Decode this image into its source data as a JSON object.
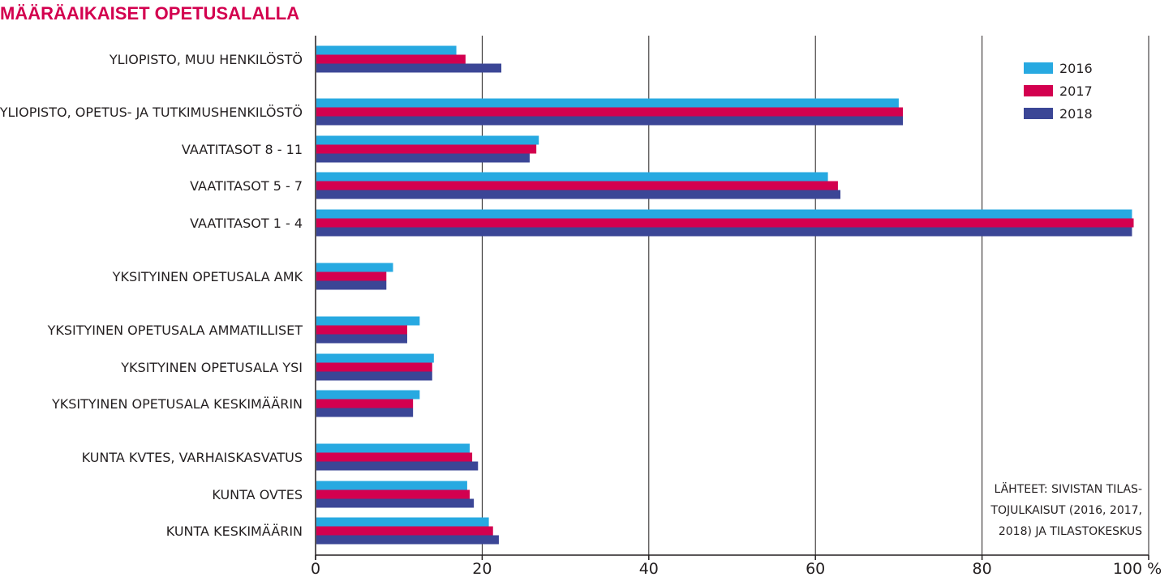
{
  "colors": {
    "title": "#d3004f",
    "text": "#231f20",
    "grid": "#231f20"
  },
  "chart_data": {
    "type": "bar",
    "orientation": "horizontal",
    "title": "MÄÄRÄAIKAISET OPETUSALALLA",
    "xlim": [
      0,
      100
    ],
    "x_ticks": [
      {
        "value": 0,
        "label": "0"
      },
      {
        "value": 20,
        "label": "20"
      },
      {
        "value": 40,
        "label": "40"
      },
      {
        "value": 60,
        "label": "60"
      },
      {
        "value": 80,
        "label": "80"
      },
      {
        "value": 100,
        "label": "100 %"
      }
    ],
    "grid": true,
    "legend_position": "top-right",
    "categories": [
      "YLIOPISTO, MUU HENKILÖSTÖ",
      "YLIOPISTO, OPETUS- JA TUTKIMUSHENKILÖSTÖ",
      "VAATITASOT 8 - 11",
      "VAATITASOT 5 - 7",
      "VAATITASOT 1 - 4",
      "YKSITYINEN OPETUSALA AMK",
      "YKSITYINEN OPETUSALA AMMATILLISET",
      "YKSITYINEN OPETUSALA YSI",
      "YKSITYINEN OPETUSALA KESKIMÄÄRIN",
      "KUNTA KVTES, VARHAISKASVATUS",
      "KUNTA OVTES",
      "KUNTA KESKIMÄÄRIN"
    ],
    "series": [
      {
        "name": "2016",
        "color": "#27a9e1",
        "values": [
          16.9,
          70.0,
          26.8,
          61.5,
          98.0,
          9.3,
          12.5,
          14.2,
          12.5,
          18.5,
          18.2,
          20.8
        ]
      },
      {
        "name": "2017",
        "color": "#d3004f",
        "values": [
          18.0,
          70.5,
          26.5,
          62.7,
          98.2,
          8.5,
          11.0,
          14.0,
          11.7,
          18.8,
          18.5,
          21.3
        ]
      },
      {
        "name": "2018",
        "color": "#3b4696",
        "values": [
          22.3,
          70.5,
          25.7,
          63.0,
          98.0,
          8.5,
          11.0,
          14.0,
          11.7,
          19.5,
          19.0,
          22.0
        ]
      }
    ],
    "source_note": [
      "LÄHTEET: SIVISTAN TILAS-",
      "TOJULKAISUT (2016, 2017,",
      "2018) JA TILASTOKESKUS"
    ]
  }
}
